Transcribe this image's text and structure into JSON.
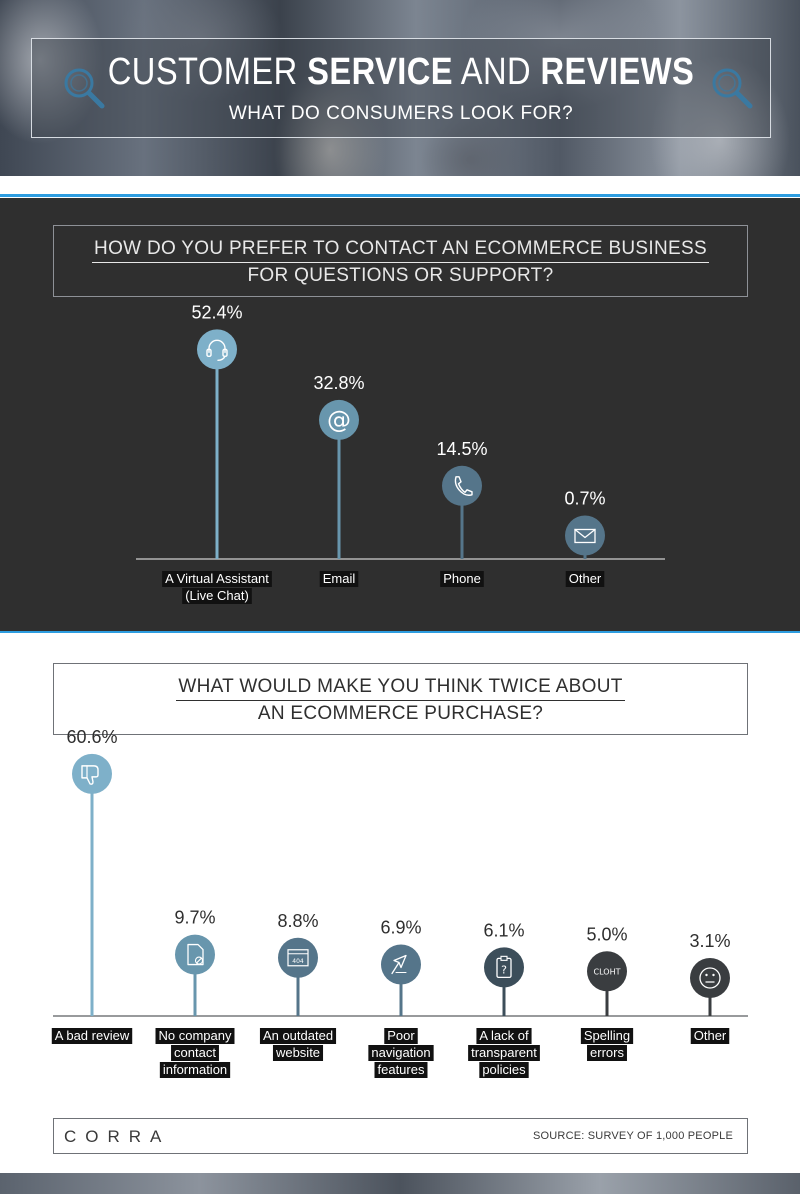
{
  "header": {
    "title_part1": "CUSTOMER ",
    "title_part2": "SERVICE",
    "title_part3": " AND ",
    "title_part4": "REVIEWS",
    "subtitle": "WHAT DO CONSUMERS LOOK FOR?",
    "icon": "magnifier-icon"
  },
  "colors": {
    "accent_blue": "#2d9de0",
    "dark_bg": "#2f2f2f",
    "bar_light": "#7eb0c9",
    "bar_mid": "#6896ad",
    "bar_slate": "#55758a",
    "bar_dark": "#3c4e5a",
    "bar_charcoal": "#3a3d40",
    "label_bg": "#111111"
  },
  "chart_data": [
    {
      "type": "bar",
      "title": "HOW DO YOU PREFER TO CONTACT AN ECOMMERCE BUSINESS",
      "subtitle": "FOR QUESTIONS OR SUPPORT?",
      "categories": [
        [
          "A Virtual Assistant",
          "(Live Chat)"
        ],
        [
          "Email"
        ],
        [
          "Phone"
        ],
        [
          "Other"
        ]
      ],
      "values": [
        52.4,
        32.8,
        14.5,
        0.7
      ],
      "value_labels": [
        "52.4%",
        "32.8%",
        "14.5%",
        "0.7%"
      ],
      "icons": [
        "headset-icon",
        "at-sign-icon",
        "phone-icon",
        "envelope-icon"
      ],
      "ylim": [
        0,
        100
      ],
      "grid": false
    },
    {
      "type": "bar",
      "title": "WHAT WOULD MAKE YOU THINK TWICE ABOUT",
      "subtitle": "AN ECOMMERCE PURCHASE?",
      "categories": [
        [
          "A bad review"
        ],
        [
          "No company",
          "contact",
          "information"
        ],
        [
          "An outdated",
          "website"
        ],
        [
          "Poor",
          "navigation",
          "features"
        ],
        [
          "A lack of",
          "transparent",
          "policies"
        ],
        [
          "Spelling",
          "errors"
        ],
        [
          "Other"
        ]
      ],
      "values": [
        60.6,
        9.7,
        8.8,
        6.9,
        6.1,
        5.0,
        3.1
      ],
      "value_labels": [
        "60.6%",
        "9.7%",
        "8.8%",
        "6.9%",
        "6.1%",
        "5.0%",
        "3.1%"
      ],
      "icons": [
        "thumbs-down-icon",
        "document-blocked-icon",
        "browser-404-icon",
        "cursor-icon",
        "clipboard-question-icon",
        "misspelled-word-icon",
        "neutral-face-icon"
      ],
      "icon_text": [
        "",
        "",
        "404",
        "",
        "?",
        "CLOHT",
        ""
      ],
      "ylim": [
        0,
        100
      ],
      "grid": false
    }
  ],
  "footer": {
    "brand": "CORRA",
    "source": "SOURCE: SURVEY OF 1,000 PEOPLE"
  }
}
